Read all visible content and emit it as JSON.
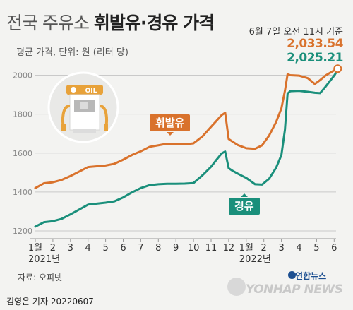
{
  "header": {
    "title_light": "전국 주유소 ",
    "title_bold": "휘발유·경유 가격",
    "subtitle": "평균 가격, 단위: 원 (리터 당)",
    "date_note": "6월 7일 오전 11시 기준"
  },
  "latest": {
    "gasoline_value": "2,033.54",
    "diesel_value": "2,025.21"
  },
  "illustration": {
    "icon": "gas-station-icon",
    "sign_label": "OIL"
  },
  "footer": {
    "source": "자료: 오피넷",
    "credit": "김영은 기자  20220607",
    "logo_korean": "연합뉴스",
    "logo_text": "YONHAP NEWS"
  },
  "colors": {
    "gasoline": "#d9722c",
    "diesel": "#1a8f7b",
    "grid": "#c9c9c9",
    "background": "#f3f3f1"
  },
  "chart_data": {
    "type": "line",
    "title": "전국 주유소 휘발유·경유 가격",
    "ylabel": "평균 가격, 단위: 원 (리터 당)",
    "ylim": [
      1160,
      2060
    ],
    "yticks": [
      1200,
      1400,
      1600,
      1800,
      2000
    ],
    "grid": true,
    "month_ticks": [
      "1",
      "2",
      "3",
      "4",
      "5",
      "6",
      "7",
      "8",
      "9",
      "10",
      "11",
      "12",
      "1",
      "2",
      "3",
      "4",
      "5",
      "6"
    ],
    "year_labels": [
      {
        "label": "2021년",
        "month_index": 0
      },
      {
        "label": "2022년",
        "month_index": 12
      }
    ],
    "tick_suffix": "월",
    "series": [
      {
        "name": "휘발유",
        "x": [
          0,
          0.5,
          1.0,
          1.5,
          2.0,
          2.5,
          3.0,
          3.5,
          4.0,
          4.5,
          5.0,
          5.5,
          6.0,
          6.5,
          7.0,
          7.5,
          8.0,
          8.5,
          9.0,
          9.5,
          10.0,
          10.3,
          10.6,
          10.8,
          11.0,
          11.2,
          11.5,
          12.0,
          12.5,
          12.9,
          13.3,
          13.7,
          14.0,
          14.2,
          14.35,
          14.5,
          15.0,
          15.5,
          15.9,
          16.2,
          16.5,
          17.0,
          17.2
        ],
        "values": [
          1420,
          1445,
          1450,
          1462,
          1482,
          1505,
          1528,
          1532,
          1536,
          1545,
          1566,
          1590,
          1609,
          1632,
          1640,
          1648,
          1645,
          1645,
          1650,
          1685,
          1735,
          1765,
          1795,
          1807,
          1672,
          1660,
          1642,
          1625,
          1622,
          1640,
          1690,
          1760,
          1830,
          1920,
          2005,
          2000,
          1998,
          1985,
          1955,
          1975,
          1998,
          2025,
          2033.54
        ],
        "latest_value": "2,033.54"
      },
      {
        "name": "경유",
        "x": [
          0,
          0.5,
          1.0,
          1.5,
          2.0,
          2.5,
          3.0,
          3.5,
          4.0,
          4.5,
          5.0,
          5.5,
          6.0,
          6.5,
          7.0,
          7.5,
          8.0,
          8.5,
          9.0,
          9.5,
          10.0,
          10.3,
          10.6,
          10.8,
          11.0,
          11.2,
          11.5,
          12.0,
          12.5,
          12.9,
          13.3,
          13.7,
          14.0,
          14.2,
          14.35,
          14.5,
          15.0,
          15.5,
          15.9,
          16.2,
          16.5,
          17.0,
          17.2
        ],
        "values": [
          1222,
          1245,
          1250,
          1262,
          1285,
          1310,
          1335,
          1340,
          1345,
          1352,
          1372,
          1398,
          1420,
          1435,
          1440,
          1442,
          1442,
          1443,
          1446,
          1485,
          1530,
          1565,
          1598,
          1608,
          1522,
          1510,
          1495,
          1472,
          1440,
          1438,
          1468,
          1525,
          1590,
          1720,
          1905,
          1918,
          1920,
          1915,
          1910,
          1908,
          1940,
          1998,
          2025.21
        ],
        "latest_value": "2,025.21"
      }
    ],
    "annotations": [
      {
        "label": "휘발유",
        "series": "휘발유"
      },
      {
        "label": "경유",
        "series": "경유"
      }
    ]
  }
}
